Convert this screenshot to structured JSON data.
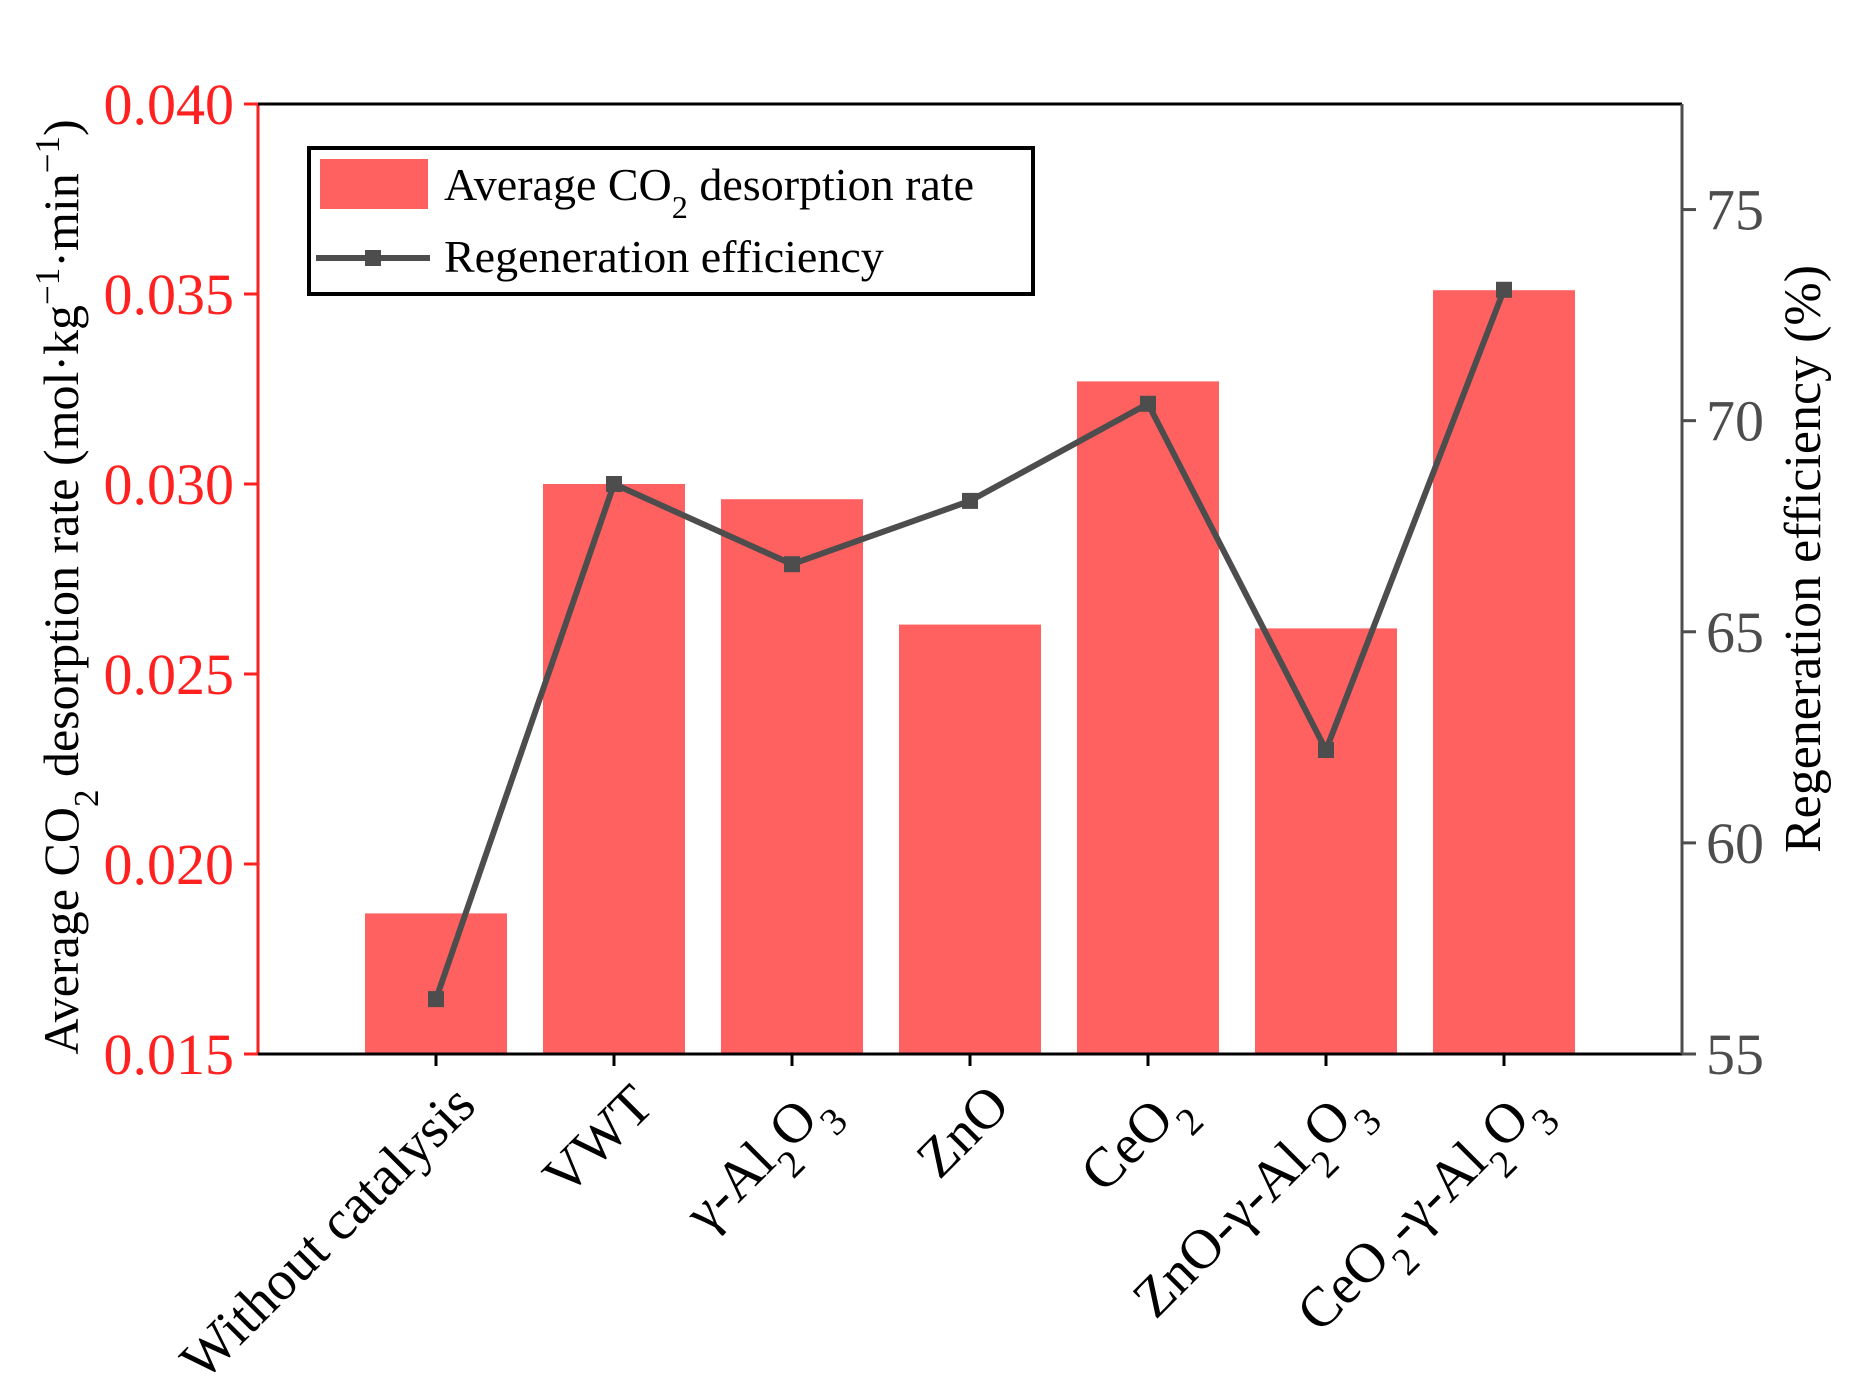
{
  "chart_data": {
    "type": "bar",
    "categories": [
      "Without catalysis",
      "VWT",
      "γ-Al₂O₃",
      "ZnO",
      "CeO₂",
      "ZnO-γ-Al₂O₃",
      "CeO₂-γ-Al₂O₃"
    ],
    "category_labels": [
      [
        {
          "t": "Without catalysis"
        }
      ],
      [
        {
          "t": "VWT"
        }
      ],
      [
        {
          "t": "γ-Al"
        },
        {
          "t": "2",
          "sub": true
        },
        {
          "t": "O"
        },
        {
          "t": "3",
          "sub": true
        }
      ],
      [
        {
          "t": "ZnO"
        }
      ],
      [
        {
          "t": "CeO"
        },
        {
          "t": "2",
          "sub": true
        }
      ],
      [
        {
          "t": "ZnO-γ-Al"
        },
        {
          "t": "2",
          "sub": true
        },
        {
          "t": "O"
        },
        {
          "t": "3",
          "sub": true
        }
      ],
      [
        {
          "t": "CeO"
        },
        {
          "t": "2",
          "sub": true
        },
        {
          "t": "-γ-Al"
        },
        {
          "t": "2",
          "sub": true
        },
        {
          "t": "O"
        },
        {
          "t": "3",
          "sub": true
        }
      ]
    ],
    "series": [
      {
        "name": "Average CO2 desorption rate",
        "type": "bar",
        "axis": "left",
        "color": "#ff6060",
        "values": [
          0.0187,
          0.03,
          0.0296,
          0.0263,
          0.0327,
          0.0262,
          0.0351
        ]
      },
      {
        "name": "Regeneration efficiency",
        "type": "line",
        "axis": "right",
        "color": "#4d4d4d",
        "marker": "square",
        "values": [
          56.3,
          68.5,
          66.6,
          68.1,
          70.4,
          62.2,
          73.1
        ]
      }
    ],
    "left_axis": {
      "label_parts": [
        {
          "t": "Average CO"
        },
        {
          "t": "2",
          "sub": true
        },
        {
          "t": " desorption rate (mol·kg"
        },
        {
          "t": "−1",
          "sup": true
        },
        {
          "t": "·min"
        },
        {
          "t": "−1",
          "sup": true
        },
        {
          "t": ")"
        }
      ],
      "ylim": [
        0.015,
        0.04
      ],
      "ticks": [
        0.015,
        0.02,
        0.025,
        0.03,
        0.035,
        0.04
      ],
      "tick_labels": [
        "0.015",
        "0.020",
        "0.025",
        "0.030",
        "0.035",
        "0.040"
      ],
      "color": "#ff2020"
    },
    "right_axis": {
      "label": "Regeneration efficiency (%)",
      "ylim": [
        55,
        77.5
      ],
      "ticks": [
        55,
        60,
        65,
        70,
        75
      ],
      "tick_labels": [
        "55",
        "60",
        "65",
        "70",
        "75"
      ],
      "color": "#4d4d4d"
    },
    "legend": {
      "position": "top-left",
      "entries": [
        {
          "parts": [
            {
              "t": "Average CO"
            },
            {
              "t": "2",
              "sub": true
            },
            {
              "t": " desorption rate"
            }
          ]
        },
        {
          "parts": [
            {
              "t": "Regeneration efficiency"
            }
          ]
        }
      ]
    },
    "grid": false
  }
}
